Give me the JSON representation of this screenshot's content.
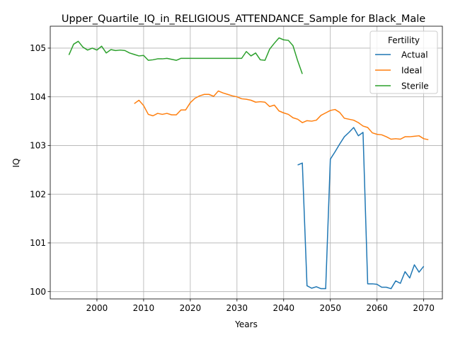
{
  "chart_data": {
    "type": "line",
    "title": "Upper_Quartile_IQ_in_RELIGIOUS_ATTENDANCE_Sample for Black_Male",
    "xlabel": "Years",
    "ylabel": "IQ",
    "xlim": [
      1990,
      2074
    ],
    "ylim": [
      99.85,
      105.45
    ],
    "xticks": [
      2000,
      2010,
      2020,
      2030,
      2040,
      2050,
      2060,
      2070
    ],
    "yticks": [
      100,
      101,
      102,
      103,
      104,
      105
    ],
    "grid": true,
    "legend": {
      "title": "Fertility",
      "placement": "top-right"
    },
    "series": [
      {
        "name": "Actual",
        "color": "#1f77b4",
        "points": [
          [
            2043,
            102.6
          ],
          [
            2044,
            102.64
          ],
          [
            2045,
            100.12
          ],
          [
            2046,
            100.07
          ],
          [
            2047,
            100.1
          ],
          [
            2048,
            100.06
          ],
          [
            2049,
            100.06
          ],
          [
            2050,
            102.72
          ],
          [
            2051,
            102.87
          ],
          [
            2052,
            103.03
          ],
          [
            2053,
            103.18
          ],
          [
            2054,
            103.27
          ],
          [
            2055,
            103.37
          ],
          [
            2056,
            103.2
          ],
          [
            2057,
            103.27
          ],
          [
            2058,
            100.16
          ],
          [
            2059,
            100.16
          ],
          [
            2060,
            100.15
          ],
          [
            2061,
            100.09
          ],
          [
            2062,
            100.09
          ],
          [
            2063,
            100.06
          ],
          [
            2064,
            100.22
          ],
          [
            2065,
            100.17
          ],
          [
            2066,
            100.41
          ],
          [
            2067,
            100.28
          ],
          [
            2068,
            100.55
          ],
          [
            2069,
            100.4
          ],
          [
            2070,
            100.52
          ]
        ]
      },
      {
        "name": "Ideal",
        "color": "#ff7f0e",
        "points": [
          [
            2008,
            103.86
          ],
          [
            2009,
            103.93
          ],
          [
            2010,
            103.82
          ],
          [
            2011,
            103.64
          ],
          [
            2012,
            103.61
          ],
          [
            2013,
            103.66
          ],
          [
            2014,
            103.64
          ],
          [
            2015,
            103.66
          ],
          [
            2016,
            103.63
          ],
          [
            2017,
            103.63
          ],
          [
            2018,
            103.73
          ],
          [
            2019,
            103.73
          ],
          [
            2020,
            103.88
          ],
          [
            2021,
            103.97
          ],
          [
            2022,
            104.02
          ],
          [
            2023,
            104.05
          ],
          [
            2024,
            104.05
          ],
          [
            2025,
            104.01
          ],
          [
            2026,
            104.12
          ],
          [
            2027,
            104.08
          ],
          [
            2028,
            104.05
          ],
          [
            2029,
            104.02
          ],
          [
            2030,
            104.0
          ],
          [
            2031,
            103.96
          ],
          [
            2032,
            103.95
          ],
          [
            2033,
            103.93
          ],
          [
            2034,
            103.89
          ],
          [
            2035,
            103.9
          ],
          [
            2036,
            103.89
          ],
          [
            2037,
            103.8
          ],
          [
            2038,
            103.83
          ],
          [
            2039,
            103.71
          ],
          [
            2040,
            103.67
          ],
          [
            2041,
            103.64
          ],
          [
            2042,
            103.57
          ],
          [
            2043,
            103.54
          ],
          [
            2044,
            103.47
          ],
          [
            2045,
            103.51
          ],
          [
            2046,
            103.5
          ],
          [
            2047,
            103.52
          ],
          [
            2048,
            103.62
          ],
          [
            2049,
            103.67
          ],
          [
            2050,
            103.72
          ],
          [
            2051,
            103.74
          ],
          [
            2052,
            103.68
          ],
          [
            2053,
            103.56
          ],
          [
            2054,
            103.54
          ],
          [
            2055,
            103.52
          ],
          [
            2056,
            103.47
          ],
          [
            2057,
            103.4
          ],
          [
            2058,
            103.37
          ],
          [
            2059,
            103.26
          ],
          [
            2060,
            103.23
          ],
          [
            2061,
            103.22
          ],
          [
            2062,
            103.18
          ],
          [
            2063,
            103.13
          ],
          [
            2064,
            103.14
          ],
          [
            2065,
            103.13
          ],
          [
            2066,
            103.18
          ],
          [
            2067,
            103.18
          ],
          [
            2068,
            103.19
          ],
          [
            2069,
            103.2
          ],
          [
            2070,
            103.14
          ],
          [
            2071,
            103.12
          ]
        ]
      },
      {
        "name": "Sterile",
        "color": "#2ca02c",
        "points": [
          [
            1994,
            104.86
          ],
          [
            1995,
            105.08
          ],
          [
            1996,
            105.14
          ],
          [
            1997,
            105.02
          ],
          [
            1998,
            104.96
          ],
          [
            1999,
            105.0
          ],
          [
            2000,
            104.96
          ],
          [
            2001,
            105.04
          ],
          [
            2002,
            104.9
          ],
          [
            2003,
            104.97
          ],
          [
            2004,
            104.95
          ],
          [
            2005,
            104.96
          ],
          [
            2006,
            104.95
          ],
          [
            2007,
            104.9
          ],
          [
            2008,
            104.87
          ],
          [
            2009,
            104.84
          ],
          [
            2010,
            104.85
          ],
          [
            2011,
            104.75
          ],
          [
            2012,
            104.76
          ],
          [
            2013,
            104.78
          ],
          [
            2014,
            104.78
          ],
          [
            2015,
            104.79
          ],
          [
            2016,
            104.77
          ],
          [
            2017,
            104.75
          ],
          [
            2018,
            104.79
          ],
          [
            2019,
            104.79
          ],
          [
            2020,
            104.79
          ],
          [
            2021,
            104.79
          ],
          [
            2022,
            104.79
          ],
          [
            2023,
            104.79
          ],
          [
            2024,
            104.79
          ],
          [
            2025,
            104.79
          ],
          [
            2026,
            104.79
          ],
          [
            2027,
            104.79
          ],
          [
            2028,
            104.79
          ],
          [
            2029,
            104.79
          ],
          [
            2030,
            104.79
          ],
          [
            2031,
            104.79
          ],
          [
            2032,
            104.93
          ],
          [
            2033,
            104.84
          ],
          [
            2034,
            104.9
          ],
          [
            2035,
            104.76
          ],
          [
            2036,
            104.75
          ],
          [
            2037,
            104.98
          ],
          [
            2038,
            105.1
          ],
          [
            2039,
            105.21
          ],
          [
            2040,
            105.17
          ],
          [
            2041,
            105.16
          ],
          [
            2042,
            105.05
          ],
          [
            2043,
            104.74
          ],
          [
            2044,
            104.47
          ]
        ]
      }
    ]
  }
}
